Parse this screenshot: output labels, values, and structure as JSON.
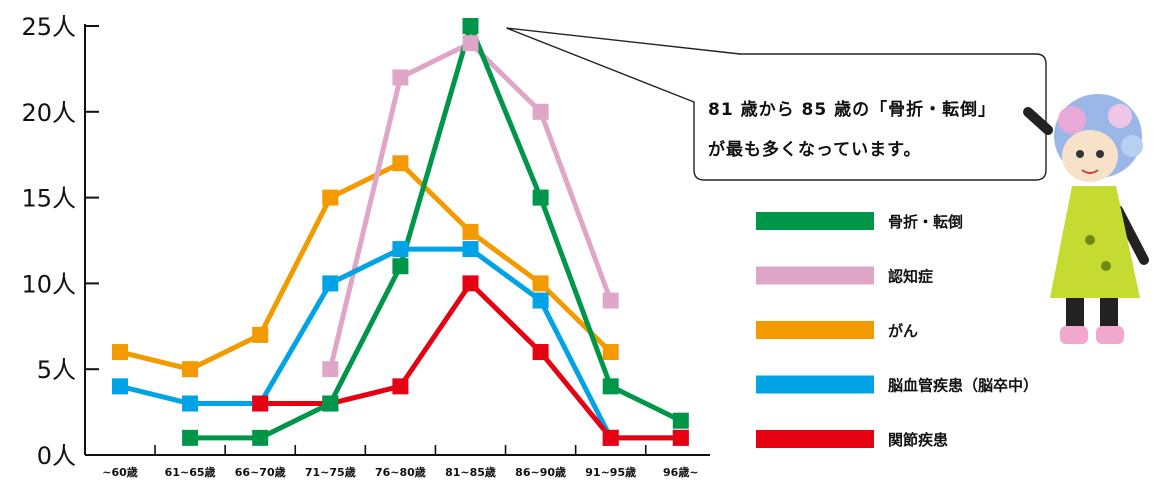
{
  "chart_data": {
    "type": "line",
    "title": "",
    "xlabel": "",
    "ylabel": "",
    "categories": [
      "~60歳",
      "61~65歳",
      "66~70歳",
      "71~75歳",
      "76~80歳",
      "81~85歳",
      "86~90歳",
      "91~95歳",
      "96歳~"
    ],
    "y_ticks": [
      "0人",
      "5人",
      "10人",
      "15人",
      "20人",
      "25人"
    ],
    "ylim": [
      0,
      25
    ],
    "grid": false,
    "legend_position": "right",
    "series": [
      {
        "name": "骨折・転倒",
        "color": "#00964a",
        "values": [
          null,
          1,
          1,
          3,
          11,
          25,
          15,
          4,
          2
        ]
      },
      {
        "name": "認知症",
        "color": "#e0a6c8",
        "values": [
          null,
          null,
          null,
          5,
          22,
          24,
          20,
          9,
          null
        ]
      },
      {
        "name": "がん",
        "color": "#f39a00",
        "values": [
          6,
          5,
          7,
          15,
          17,
          13,
          10,
          6,
          null
        ]
      },
      {
        "name": "脳血管疾患（脳卒中）",
        "color": "#00a3e6",
        "values": [
          4,
          3,
          3,
          10,
          12,
          12,
          9,
          1,
          1
        ]
      },
      {
        "name": "関節疾患",
        "color": "#e50012",
        "values": [
          null,
          null,
          3,
          3,
          4,
          10,
          6,
          1,
          1
        ]
      }
    ]
  },
  "callout": {
    "lines": [
      "81 歳から 85 歳の「骨折・転倒」",
      "が最も多くなっています。"
    ],
    "pointer_category": "81~85歳",
    "pointer_value": 25
  },
  "mascot": {
    "icon": "mascot-character-illustration",
    "dress_color": "#c6db32",
    "hair_color": "#9bb7e8"
  }
}
